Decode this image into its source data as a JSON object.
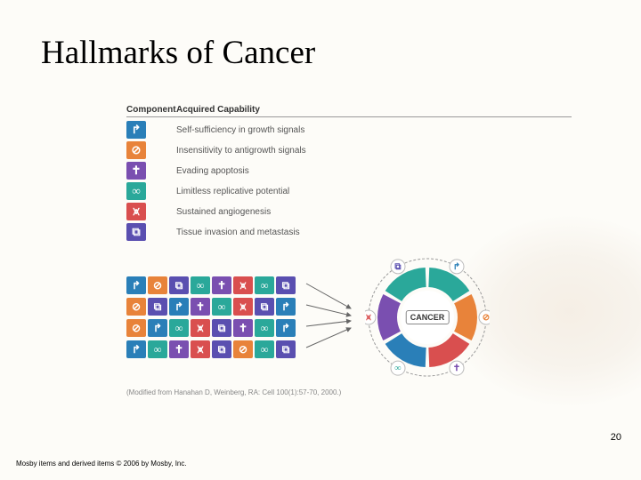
{
  "title": "Hallmarks of Cancer",
  "table": {
    "header_component": "Component",
    "header_capability": "Acquired Capability",
    "rows": [
      {
        "color": "#2a7fb8",
        "glyph": "↱",
        "label": "Self-sufficiency in growth signals"
      },
      {
        "color": "#e8833a",
        "glyph": "⊘",
        "label": "Insensitivity to antigrowth signals"
      },
      {
        "color": "#7a4fb0",
        "glyph": "✝",
        "label": "Evading apoptosis"
      },
      {
        "color": "#2aa89a",
        "glyph": "∞",
        "label": "Limitless replicative potential"
      },
      {
        "color": "#d94f4f",
        "glyph": "⩙",
        "label": "Sustained angiogenesis"
      },
      {
        "color": "#5a4fb0",
        "glyph": "⧉",
        "label": "Tissue invasion and metastasis"
      }
    ]
  },
  "sequences": {
    "rows": [
      [
        0,
        1,
        5,
        3,
        2,
        4,
        3,
        5
      ],
      [
        1,
        5,
        0,
        2,
        3,
        4,
        5,
        0
      ],
      [
        1,
        0,
        3,
        4,
        5,
        2,
        3,
        0
      ],
      [
        0,
        3,
        2,
        4,
        5,
        1,
        3,
        5
      ]
    ]
  },
  "circle": {
    "center_label": "CANCER",
    "segments": [
      {
        "color": "#2aa89a",
        "glyph_color": "#2a7fb8",
        "glyph": "↱"
      },
      {
        "color": "#e8833a",
        "glyph_color": "#e8833a",
        "glyph": "⊘"
      },
      {
        "color": "#d94f4f",
        "glyph_color": "#7a4fb0",
        "glyph": "✝"
      },
      {
        "color": "#2a7fb8",
        "glyph_color": "#2aa89a",
        "glyph": "∞"
      },
      {
        "color": "#7a4fb0",
        "glyph_color": "#d94f4f",
        "glyph": "⩙"
      },
      {
        "color": "#2aa89a",
        "glyph_color": "#5a4fb0",
        "glyph": "⧉"
      }
    ],
    "outer_radius": 56,
    "inner_radius": 34,
    "outline_radius": 66
  },
  "citation": "(Modified from Hanahan D, Weinberg, RA: Cell 100(1):57-70, 2000.)",
  "page_number": "20",
  "copyright": "Mosby items and derived items © 2006 by Mosby, Inc."
}
